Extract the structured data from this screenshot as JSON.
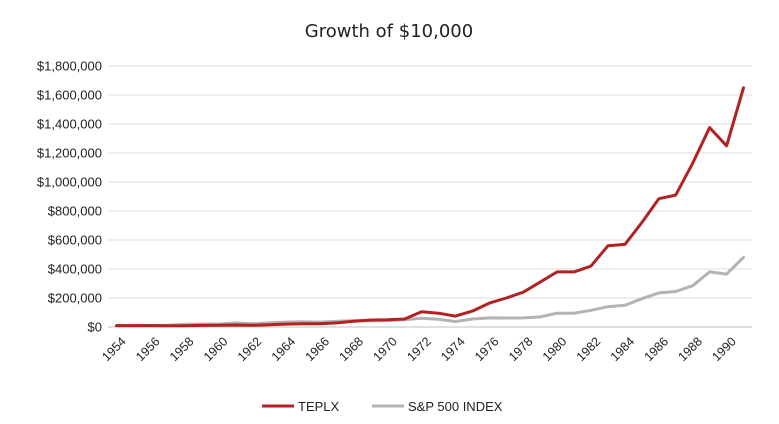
{
  "chart_data": {
    "type": "line",
    "title": "Growth of $10,000",
    "xlabel": "",
    "ylabel": "",
    "ylim": [
      0,
      1800000
    ],
    "y_ticks": [
      0,
      200000,
      400000,
      600000,
      800000,
      1000000,
      1200000,
      1400000,
      1600000,
      1800000
    ],
    "y_tick_labels": [
      "$0",
      "$200,000",
      "$400,000",
      "$600,000",
      "$800,000",
      "$1,000,000",
      "$1,200,000",
      "$1,400,000",
      "$1,600,000",
      "$1,800,000"
    ],
    "x_tick_labels": [
      "1954",
      "1956",
      "1958",
      "1960",
      "1962",
      "1964",
      "1966",
      "1968",
      "1970",
      "1972",
      "1974",
      "1976",
      "1978",
      "1980",
      "1982",
      "1984",
      "1986",
      "1988",
      "1990"
    ],
    "x": [
      1954,
      1955,
      1956,
      1957,
      1958,
      1959,
      1960,
      1961,
      1962,
      1963,
      1964,
      1965,
      1966,
      1967,
      1968,
      1969,
      1970,
      1971,
      1972,
      1973,
      1974,
      1975,
      1976,
      1977,
      1978,
      1979,
      1980,
      1981,
      1982,
      1983,
      1984,
      1985,
      1986,
      1987,
      1988,
      1989,
      1990,
      1991
    ],
    "grid": true,
    "legend_position": "bottom",
    "series": [
      {
        "name": "TEPLX",
        "color": "#b22222",
        "values": [
          10000,
          10000,
          10000,
          8000,
          9000,
          11000,
          12000,
          14000,
          12000,
          15000,
          20000,
          22000,
          23000,
          28000,
          40000,
          48000,
          50000,
          55000,
          105000,
          95000,
          75000,
          110000,
          165000,
          200000,
          240000,
          310000,
          380000,
          380000,
          420000,
          560000,
          570000,
          720000,
          885000,
          910000,
          1130000,
          1375000,
          1250000,
          1650000
        ]
      },
      {
        "name": "S&P 500 INDEX",
        "color": "#b3b3b3",
        "values": [
          10000,
          10000,
          11000,
          12000,
          18000,
          20000,
          20000,
          28000,
          22000,
          28000,
          34000,
          36000,
          34000,
          40000,
          44000,
          43000,
          44000,
          50000,
          60000,
          53000,
          38000,
          55000,
          63000,
          62000,
          63000,
          70000,
          95000,
          95000,
          115000,
          140000,
          150000,
          195000,
          235000,
          245000,
          285000,
          380000,
          365000,
          480000
        ]
      }
    ]
  }
}
